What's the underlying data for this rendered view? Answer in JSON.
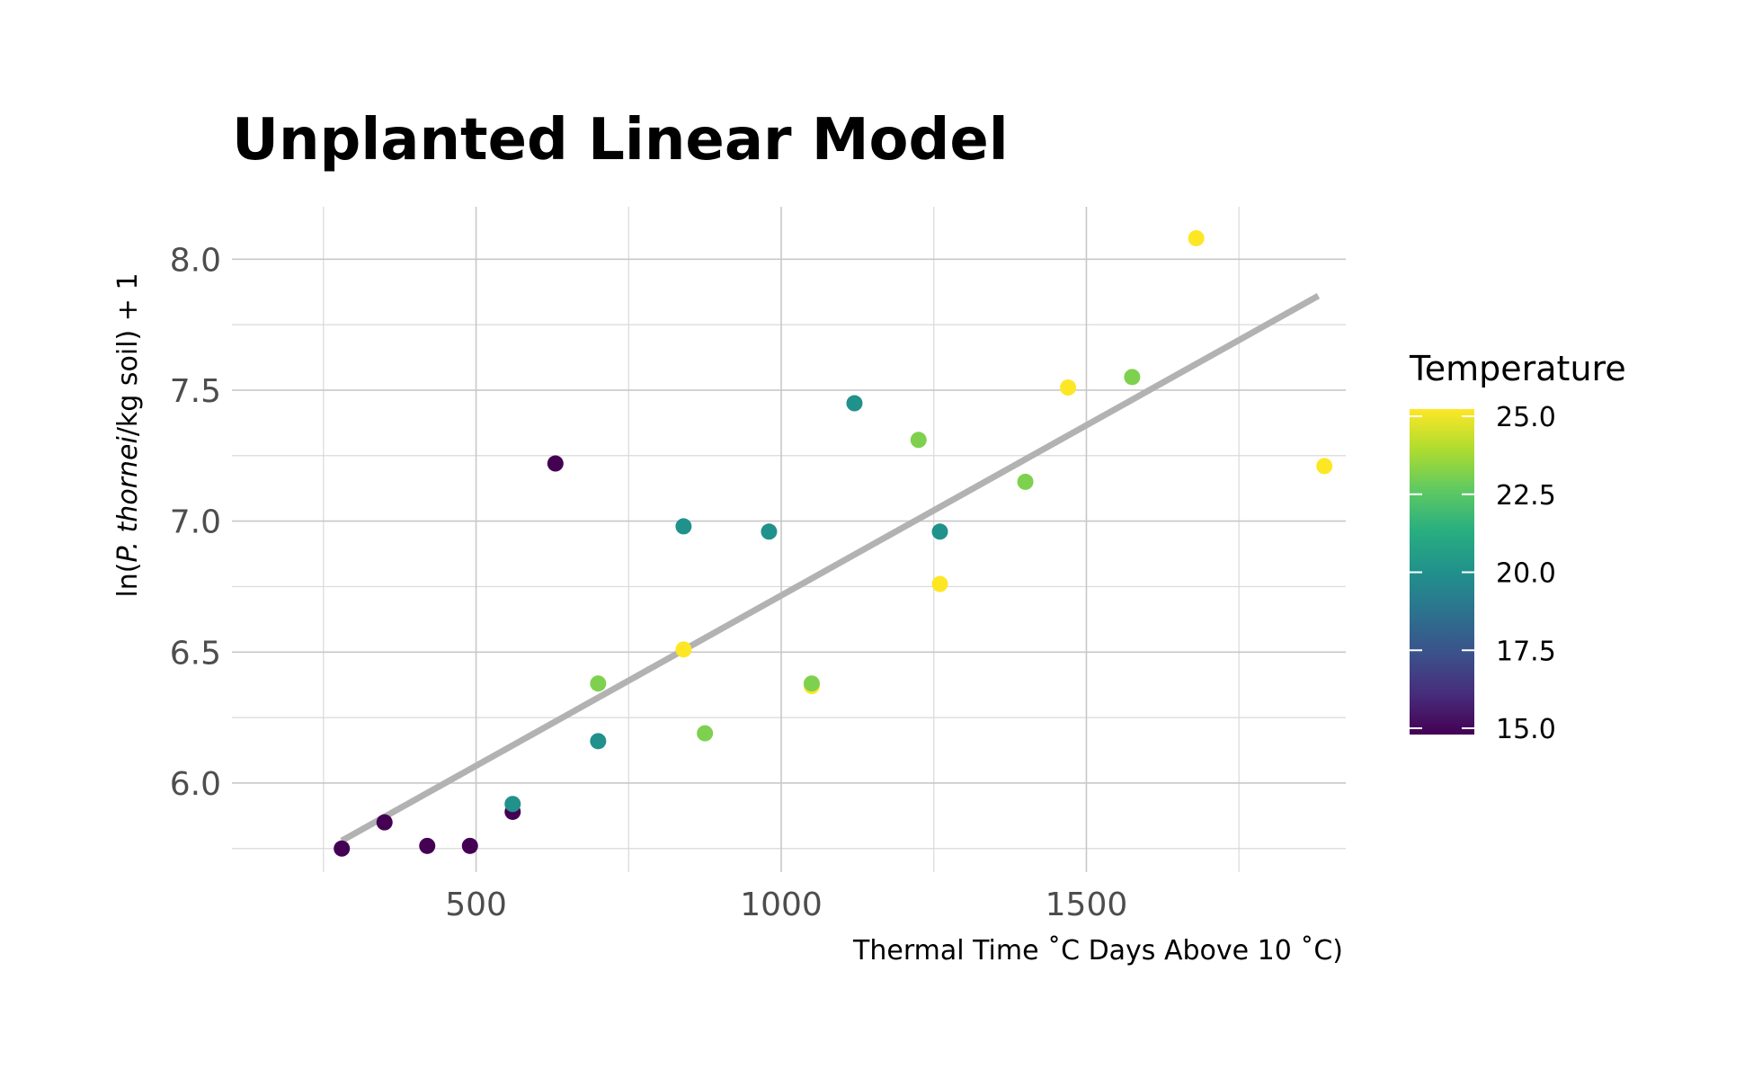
{
  "chart_data": {
    "type": "scatter",
    "title": "Unplanted Linear Model",
    "xlabel": "Thermal Time ˚C Days Above 10 ˚C)",
    "ylabel_prefix": "ln(",
    "ylabel_italic": "P. thornei",
    "ylabel_suffix": "/kg soil) + 1",
    "xlim": [
      100,
      1925
    ],
    "ylim": [
      5.66,
      8.2
    ],
    "x_ticks": [
      500,
      1000,
      1500
    ],
    "x_tick_labels": [
      "500",
      "1000",
      "1500"
    ],
    "x_minor_ticks": [
      250,
      750,
      1250,
      1750
    ],
    "y_ticks": [
      6.0,
      6.5,
      7.0,
      7.5,
      8.0
    ],
    "y_tick_labels": [
      "6.0",
      "6.5",
      "7.0",
      "7.5",
      "8.0"
    ],
    "y_minor_ticks": [
      5.75,
      6.25,
      6.75,
      7.25,
      7.75
    ],
    "grid": true,
    "legend": {
      "title": "Temperature",
      "position": "right",
      "range": [
        15.0,
        25.0
      ],
      "ticks": [
        15.0,
        17.5,
        20.0,
        22.5,
        25.0
      ],
      "tick_labels": [
        "15.0",
        "17.5",
        "20.0",
        "22.5",
        "25.0"
      ],
      "colors": [
        "#440154",
        "#472d7b",
        "#3b528b",
        "#2c728e",
        "#21918c",
        "#28ae80",
        "#5ec962",
        "#addc30",
        "#fde725"
      ]
    },
    "fit_line": {
      "x": [
        280,
        1880
      ],
      "y": [
        5.78,
        7.86
      ],
      "color": "#b2b2b2"
    },
    "points": [
      {
        "x": 280,
        "y": 5.75,
        "temp": 15.0
      },
      {
        "x": 350,
        "y": 5.85,
        "temp": 15.0
      },
      {
        "x": 420,
        "y": 5.76,
        "temp": 15.0
      },
      {
        "x": 490,
        "y": 5.76,
        "temp": 15.0
      },
      {
        "x": 560,
        "y": 5.89,
        "temp": 15.0
      },
      {
        "x": 560,
        "y": 5.92,
        "temp": 20.0
      },
      {
        "x": 630,
        "y": 7.22,
        "temp": 15.0
      },
      {
        "x": 700,
        "y": 6.16,
        "temp": 20.0
      },
      {
        "x": 700,
        "y": 6.38,
        "temp": 23.0
      },
      {
        "x": 840,
        "y": 6.51,
        "temp": 25.0
      },
      {
        "x": 840,
        "y": 6.98,
        "temp": 20.0
      },
      {
        "x": 875,
        "y": 6.19,
        "temp": 23.0
      },
      {
        "x": 980,
        "y": 6.96,
        "temp": 20.0
      },
      {
        "x": 1050,
        "y": 6.37,
        "temp": 25.0
      },
      {
        "x": 1050,
        "y": 6.38,
        "temp": 23.0
      },
      {
        "x": 1120,
        "y": 7.45,
        "temp": 20.0
      },
      {
        "x": 1225,
        "y": 7.31,
        "temp": 23.0
      },
      {
        "x": 1260,
        "y": 6.76,
        "temp": 25.0
      },
      {
        "x": 1260,
        "y": 6.96,
        "temp": 20.0
      },
      {
        "x": 1400,
        "y": 7.15,
        "temp": 23.0
      },
      {
        "x": 1470,
        "y": 7.51,
        "temp": 25.0
      },
      {
        "x": 1575,
        "y": 7.55,
        "temp": 23.0
      },
      {
        "x": 1680,
        "y": 8.08,
        "temp": 25.0
      },
      {
        "x": 1890,
        "y": 7.21,
        "temp": 25.0
      }
    ]
  }
}
